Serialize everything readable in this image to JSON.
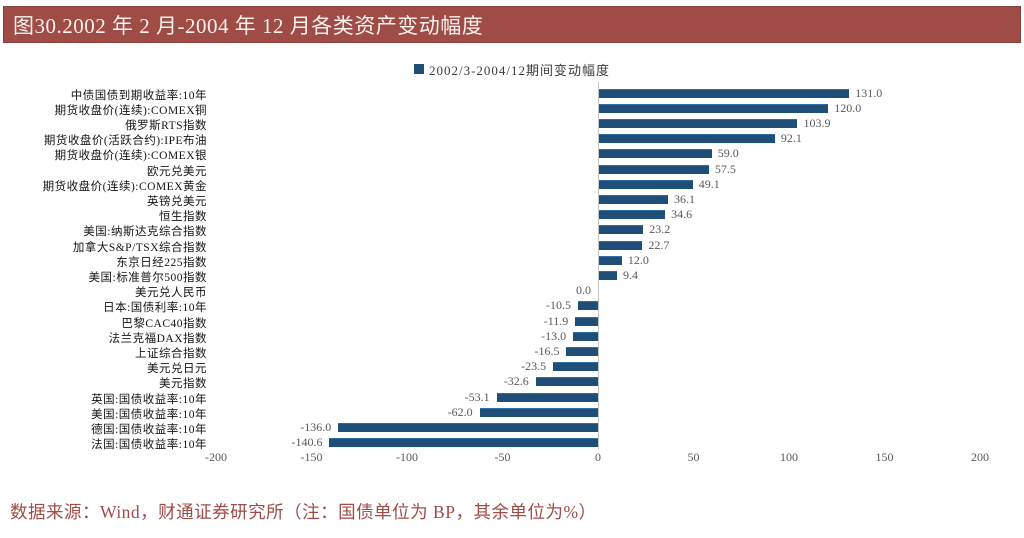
{
  "title": {
    "text": "图30.2002 年 2 月-2004 年 12 月各类资产变动幅度"
  },
  "legend": {
    "label": "2002/3-2004/12期间变动幅度"
  },
  "footer": {
    "text": "数据来源：Wind，财通证券研究所（注：国债单位为 BP，其余单位为%）"
  },
  "colors": {
    "title_bg": "#9F4C47",
    "bar": "#1F4E79",
    "axis_line": "#C6C6C6",
    "value_label": "#595959",
    "footer_text": "#9F4C47"
  },
  "icons": {
    "legend_marker": "square-swatch-icon"
  },
  "chart_data": {
    "type": "bar",
    "orientation": "horizontal",
    "title": "图30.2002 年 2 月-2004 年 12 月各类资产变动幅度",
    "legend_entries": [
      "2002/3-2004/12期间变动幅度"
    ],
    "legend_position": "top-center",
    "grid": false,
    "xlim": [
      -200,
      200
    ],
    "xticks": [
      -200,
      -150,
      -100,
      -50,
      0,
      50,
      100,
      150,
      200
    ],
    "unit_note": "国债单位为 BP，其余单位为%",
    "categories": [
      "中债国债到期收益率:10年",
      "期货收盘价(连续):COMEX铜",
      "俄罗斯RTS指数",
      "期货收盘价(活跃合约):IPE布油",
      "期货收盘价(连续):COMEX银",
      "欧元兑美元",
      "期货收盘价(连续):COMEX黄金",
      "英镑兑美元",
      "恒生指数",
      "美国:纳斯达克综合指数",
      "加拿大S&P/TSX综合指数",
      "东京日经225指数",
      "美国:标准普尔500指数",
      "美元兑人民币",
      "日本:国债利率:10年",
      "巴黎CAC40指数",
      "法兰克福DAX指数",
      "上证综合指数",
      "美元兑日元",
      "美元指数",
      "英国:国债收益率:10年",
      "美国:国债收益率:10年",
      "德国:国债收益率:10年",
      "法国:国债收益率:10年"
    ],
    "values": [
      131.0,
      120.0,
      103.9,
      92.1,
      59.0,
      57.5,
      49.1,
      36.1,
      34.6,
      23.2,
      22.7,
      12.0,
      9.4,
      0.0,
      -10.5,
      -11.9,
      -13.0,
      -16.5,
      -23.5,
      -32.6,
      -53.1,
      -62.0,
      -136.0,
      -140.6
    ],
    "value_labels": [
      "131.0",
      "120.0",
      "103.9",
      "92.1",
      "59.0",
      "57.5",
      "49.1",
      "36.1",
      "34.6",
      "23.2",
      "22.7",
      "12.0",
      "9.4",
      "0.0",
      "-10.5",
      "-11.9",
      "-13.0",
      "-16.5",
      "-23.5",
      "-32.6",
      "-53.1",
      "-62.0",
      "-136.0",
      "-140.6"
    ]
  }
}
